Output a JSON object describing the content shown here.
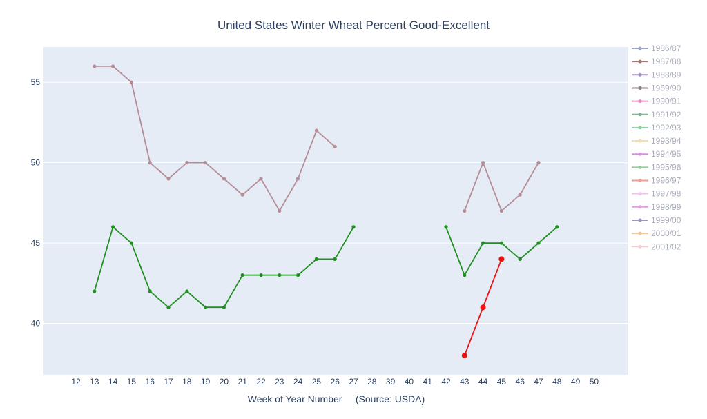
{
  "chart_data": {
    "type": "line",
    "title": "United States Winter Wheat Percent Good-Excellent",
    "xlabel": "Week of Year Number     (Source: USDA)",
    "ylabel": "",
    "x_categories": [
      "12",
      "13",
      "14",
      "15",
      "16",
      "17",
      "18",
      "19",
      "20",
      "21",
      "22",
      "23",
      "24",
      "25",
      "26",
      "27",
      "28",
      "39",
      "40",
      "41",
      "42",
      "43",
      "44",
      "45",
      "46",
      "47",
      "48",
      "49",
      "50"
    ],
    "yticks": [
      40,
      45,
      50,
      55
    ],
    "ylim": [
      36.8,
      57.2
    ],
    "grid": true,
    "legend_position": "right",
    "legend": [
      {
        "label": "1986/87",
        "color": "#9aa6c8"
      },
      {
        "label": "1987/88",
        "color": "#a07a6e"
      },
      {
        "label": "1988/89",
        "color": "#a991c9"
      },
      {
        "label": "1989/90",
        "color": "#8e7a8e"
      },
      {
        "label": "1990/91",
        "color": "#e58fc2"
      },
      {
        "label": "1991/92",
        "color": "#7fb08f"
      },
      {
        "label": "1992/93",
        "color": "#8fd3a0"
      },
      {
        "label": "1993/94",
        "color": "#f3dfae"
      },
      {
        "label": "1994/95",
        "color": "#d58ee6"
      },
      {
        "label": "1995/96",
        "color": "#8fcf95"
      },
      {
        "label": "1996/97",
        "color": "#ef9f8f"
      },
      {
        "label": "1997/98",
        "color": "#efc5ef"
      },
      {
        "label": "1998/99",
        "color": "#e59ae8"
      },
      {
        "label": "1999/00",
        "color": "#9a9abf"
      },
      {
        "label": "2000/01",
        "color": "#f3c49a"
      },
      {
        "label": "2001/02",
        "color": "#f5cfcf"
      }
    ],
    "series": [
      {
        "color": "#b58c96",
        "marker": "small",
        "points": [
          {
            "x": "13",
            "y": 56
          },
          {
            "x": "14",
            "y": 56
          },
          {
            "x": "15",
            "y": 55
          },
          {
            "x": "16",
            "y": 50
          },
          {
            "x": "17",
            "y": 49
          },
          {
            "x": "18",
            "y": 50
          },
          {
            "x": "19",
            "y": 50
          },
          {
            "x": "20",
            "y": 49
          },
          {
            "x": "21",
            "y": 48
          },
          {
            "x": "22",
            "y": 49
          },
          {
            "x": "23",
            "y": 47
          },
          {
            "x": "24",
            "y": 49
          },
          {
            "x": "25",
            "y": 52
          },
          {
            "x": "26",
            "y": 51
          },
          {
            "x": "43",
            "y": 47,
            "break": true
          },
          {
            "x": "44",
            "y": 50
          },
          {
            "x": "45",
            "y": 47
          },
          {
            "x": "46",
            "y": 48
          },
          {
            "x": "47",
            "y": 50
          }
        ]
      },
      {
        "color": "#1f8f1f",
        "marker": "small",
        "points": [
          {
            "x": "13",
            "y": 42
          },
          {
            "x": "14",
            "y": 46
          },
          {
            "x": "15",
            "y": 45
          },
          {
            "x": "16",
            "y": 42
          },
          {
            "x": "17",
            "y": 41
          },
          {
            "x": "18",
            "y": 42
          },
          {
            "x": "19",
            "y": 41
          },
          {
            "x": "20",
            "y": 41
          },
          {
            "x": "21",
            "y": 43
          },
          {
            "x": "22",
            "y": 43
          },
          {
            "x": "23",
            "y": 43
          },
          {
            "x": "24",
            "y": 43
          },
          {
            "x": "25",
            "y": 44
          },
          {
            "x": "26",
            "y": 44
          },
          {
            "x": "27",
            "y": 46
          },
          {
            "x": "42",
            "y": 46,
            "break": true
          },
          {
            "x": "43",
            "y": 43
          },
          {
            "x": "44",
            "y": 45
          },
          {
            "x": "45",
            "y": 45
          },
          {
            "x": "46",
            "y": 44
          },
          {
            "x": "47",
            "y": 45
          },
          {
            "x": "48",
            "y": 46
          }
        ]
      },
      {
        "color": "#ee1111",
        "marker": "large",
        "points": [
          {
            "x": "43",
            "y": 38
          },
          {
            "x": "44",
            "y": 41
          },
          {
            "x": "45",
            "y": 44
          }
        ]
      }
    ]
  }
}
